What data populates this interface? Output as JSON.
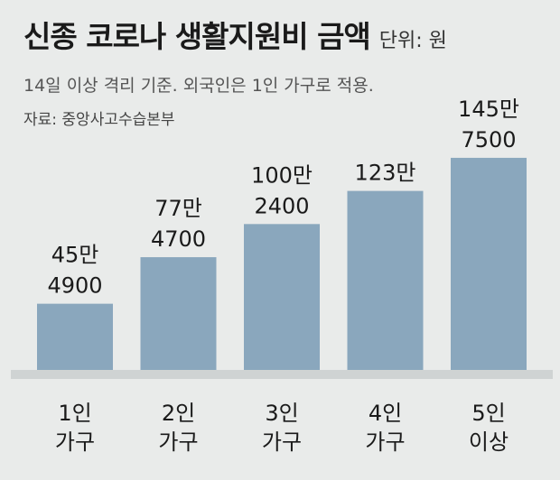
{
  "header": {
    "title": "신종 코로나 생활지원비 금액",
    "unit": "단위: 원",
    "subtitle": "14일 이상 격리 기준. 외국인은 1인 가구로 적용.",
    "source": "자료: 중앙사고수습본부"
  },
  "colors": {
    "background": "#e9ebea",
    "bar": "#8aa7bd",
    "baseline": "#cfd3d3"
  },
  "chart_data": {
    "type": "bar",
    "title": "신종 코로나 생활지원비 금액",
    "xlabel": "",
    "ylabel": "",
    "unit": "원",
    "categories": [
      "1인 가구",
      "2인 가구",
      "3인 가구",
      "4인 가구",
      "5인 이상"
    ],
    "category_lines": [
      [
        "1인",
        "가구"
      ],
      [
        "2인",
        "가구"
      ],
      [
        "3인",
        "가구"
      ],
      [
        "4인",
        "가구"
      ],
      [
        "5인",
        "이상"
      ]
    ],
    "values": [
      454900,
      774700,
      1002400,
      1230000,
      1457500
    ],
    "value_labels": [
      [
        "45만",
        "4900"
      ],
      [
        "77만",
        "4700"
      ],
      [
        "100만",
        "2400"
      ],
      [
        "123만"
      ],
      [
        "145만",
        "7500"
      ]
    ],
    "ylim": [
      0,
      1550000
    ],
    "grid": false,
    "legend": "none"
  }
}
